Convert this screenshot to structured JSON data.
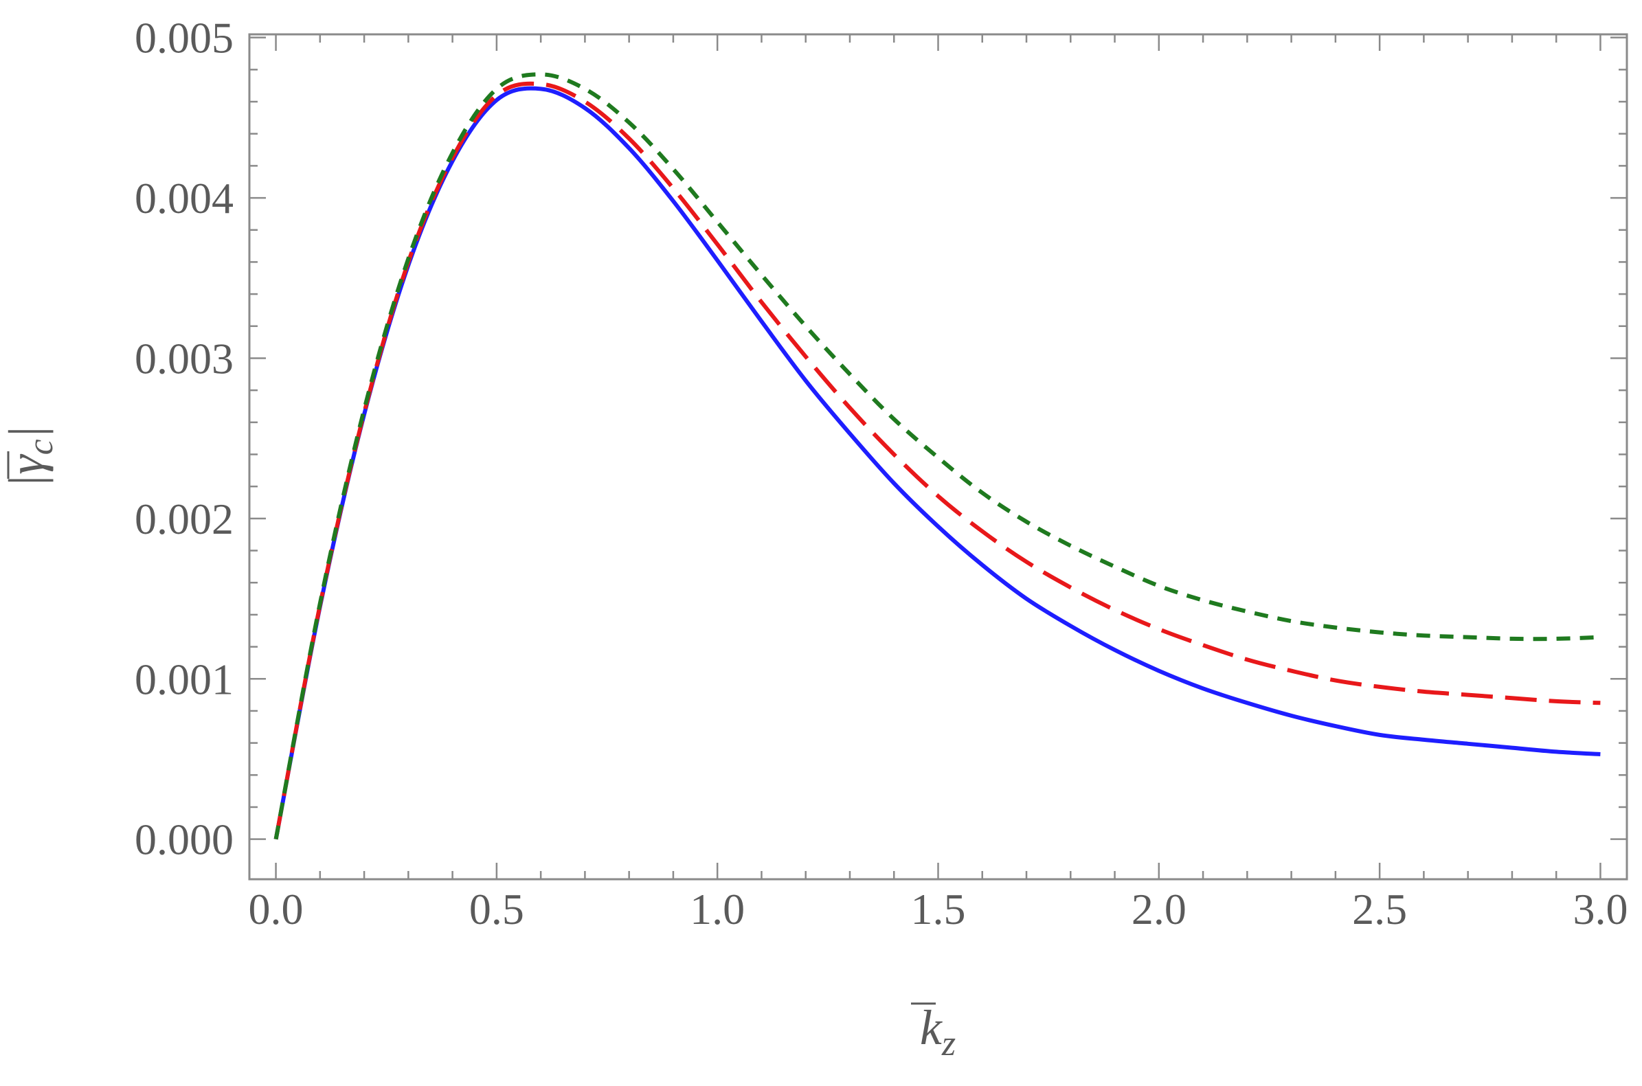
{
  "chart_data": {
    "type": "line",
    "title": "",
    "xlabel": "k̄_z",
    "ylabel": "|γ̄_c|",
    "xlabel_parts": {
      "base": "k",
      "sub": "z",
      "bar": true
    },
    "ylabel_parts": {
      "base": "γ",
      "sub": "c",
      "bar": true,
      "abs": true
    },
    "xlim": [
      -0.06,
      3.06
    ],
    "ylim": [
      -0.00025,
      0.00502
    ],
    "xticks": [
      0.0,
      0.5,
      1.0,
      1.5,
      2.0,
      2.5,
      3.0
    ],
    "xtick_labels": [
      "0.0",
      "0.5",
      "1.0",
      "1.5",
      "2.0",
      "2.5",
      "3.0"
    ],
    "yticks": [
      0.0,
      0.001,
      0.002,
      0.003,
      0.004,
      0.005
    ],
    "ytick_labels": [
      "0.000",
      "0.001",
      "0.002",
      "0.003",
      "0.004",
      "0.005"
    ],
    "grid": false,
    "legend": "none",
    "x": [
      0.0,
      0.1,
      0.2,
      0.3,
      0.4,
      0.5,
      0.6,
      0.7,
      0.8,
      0.9,
      1.0,
      1.1,
      1.2,
      1.3,
      1.4,
      1.5,
      1.6,
      1.7,
      1.8,
      1.9,
      2.0,
      2.1,
      2.2,
      2.3,
      2.4,
      2.5,
      2.6,
      2.7,
      2.8,
      2.9,
      3.0
    ],
    "series": [
      {
        "color": "#1e1eff",
        "style": "solid",
        "values": [
          0.0,
          0.00145,
          0.00265,
          0.00358,
          0.00423,
          0.00461,
          0.00468,
          0.00456,
          0.00431,
          0.00398,
          0.00361,
          0.00323,
          0.00286,
          0.00253,
          0.00222,
          0.00195,
          0.00171,
          0.0015,
          0.00133,
          0.00118,
          0.00105,
          0.00094,
          0.00085,
          0.00077,
          0.000705,
          0.00065,
          0.00062,
          0.000595,
          0.00057,
          0.000545,
          0.00053
        ]
      },
      {
        "color": "#e8181a",
        "style": "dashed",
        "values": [
          0.0,
          0.00146,
          0.00266,
          0.0036,
          0.00425,
          0.00464,
          0.00471,
          0.0046,
          0.00437,
          0.00406,
          0.00371,
          0.00335,
          0.00301,
          0.00269,
          0.0024,
          0.00214,
          0.00192,
          0.00173,
          0.00157,
          0.00143,
          0.00131,
          0.00121,
          0.00112,
          0.00105,
          0.00099,
          0.00095,
          0.00092,
          0.0009,
          0.00088,
          0.00086,
          0.00085
        ]
      },
      {
        "color": "#1f7a1f",
        "style": "dotted",
        "values": [
          0.0,
          0.00147,
          0.00268,
          0.00362,
          0.00428,
          0.00468,
          0.00477,
          0.00468,
          0.00447,
          0.00418,
          0.00385,
          0.00352,
          0.0032,
          0.0029,
          0.00262,
          0.00238,
          0.00216,
          0.00198,
          0.00183,
          0.0017,
          0.00158,
          0.00149,
          0.00142,
          0.00136,
          0.00132,
          0.00129,
          0.00127,
          0.00126,
          0.00125,
          0.00125,
          0.00126
        ]
      }
    ]
  }
}
